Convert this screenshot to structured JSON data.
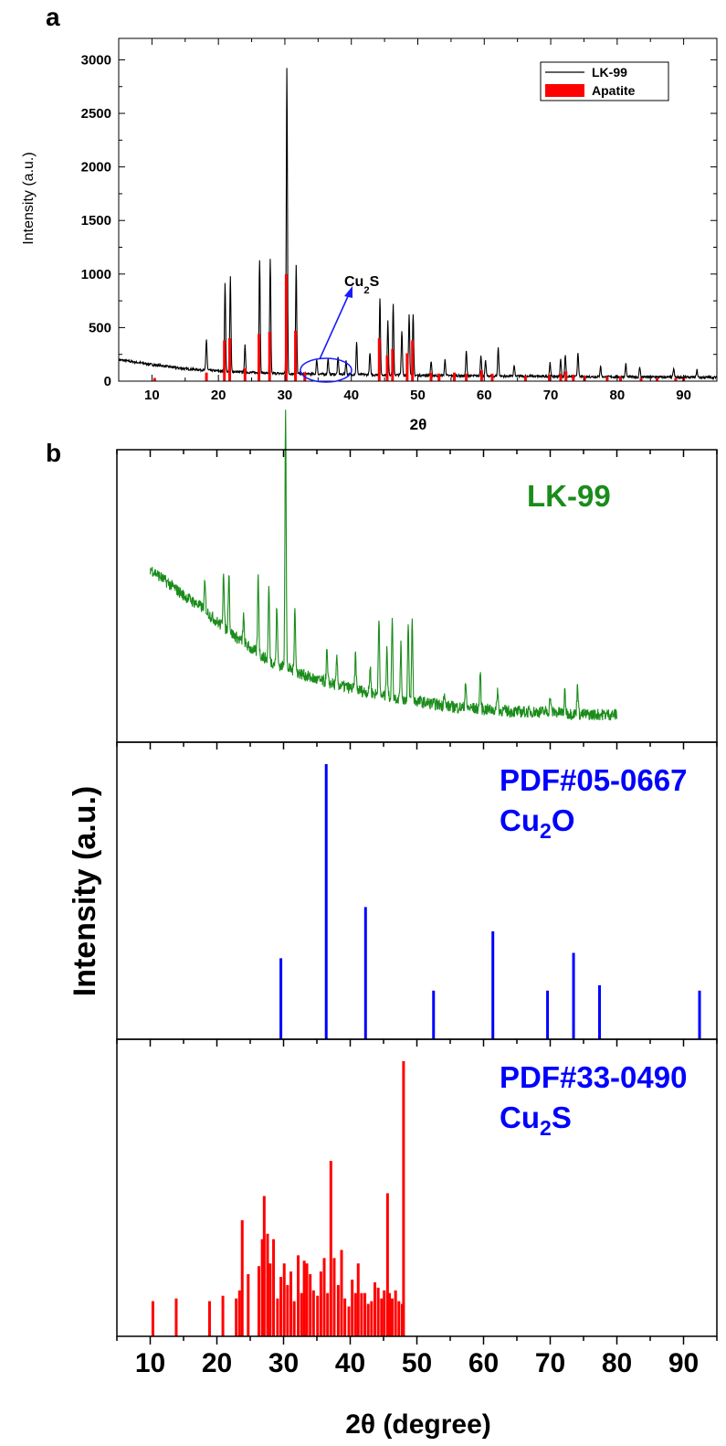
{
  "panels": {
    "a": {
      "label": "a",
      "chart_data": {
        "type": "line",
        "xlabel": "2θ",
        "ylabel": "Intensity (a.u.)",
        "xlim": [
          5,
          95
        ],
        "ylim": [
          0,
          3200
        ],
        "xticks": [
          10,
          20,
          30,
          40,
          50,
          60,
          70,
          80,
          90
        ],
        "yticks": [
          0,
          500,
          1000,
          1500,
          2000,
          2500,
          3000
        ],
        "legend_position": "top-right",
        "annotation": {
          "base": "Cu",
          "sub": "2",
          "tail": "S",
          "x": 36,
          "y": 850
        },
        "baseline": {
          "x": [
            5,
            10,
            15,
            20,
            25,
            30,
            40,
            50,
            60,
            70,
            80,
            95
          ],
          "y": [
            200,
            155,
            115,
            95,
            80,
            70,
            62,
            55,
            48,
            44,
            40,
            35
          ]
        },
        "series": [
          {
            "name": "LK-99",
            "color": "#000000",
            "peaks": [
              [
                18.2,
                290
              ],
              [
                21.0,
                820
              ],
              [
                21.8,
                880
              ],
              [
                24.0,
                250
              ],
              [
                26.2,
                1060
              ],
              [
                27.8,
                1060
              ],
              [
                30.3,
                2860
              ],
              [
                31.7,
                1010
              ],
              [
                34.8,
                140
              ],
              [
                36.5,
                150
              ],
              [
                38.0,
                160
              ],
              [
                39.2,
                130
              ],
              [
                40.8,
                300
              ],
              [
                42.8,
                200
              ],
              [
                44.3,
                720
              ],
              [
                45.5,
                500
              ],
              [
                46.3,
                660
              ],
              [
                47.6,
                420
              ],
              [
                48.7,
                570
              ],
              [
                49.3,
                560
              ],
              [
                52.0,
                130
              ],
              [
                54.1,
                150
              ],
              [
                57.3,
                230
              ],
              [
                59.5,
                200
              ],
              [
                60.2,
                140
              ],
              [
                62.1,
                270
              ],
              [
                64.5,
                100
              ],
              [
                69.9,
                130
              ],
              [
                71.5,
                160
              ],
              [
                72.2,
                200
              ],
              [
                74.1,
                230
              ],
              [
                77.5,
                100
              ],
              [
                81.3,
                120
              ],
              [
                83.4,
                90
              ],
              [
                88.5,
                80
              ],
              [
                92.0,
                70
              ]
            ]
          },
          {
            "name": "Apatite",
            "color": "#ff0000",
            "peaks": [
              [
                10.4,
                30
              ],
              [
                18.2,
                80
              ],
              [
                20.9,
                380
              ],
              [
                21.7,
                400
              ],
              [
                24.0,
                120
              ],
              [
                26.1,
                440
              ],
              [
                27.7,
                460
              ],
              [
                30.2,
                1000
              ],
              [
                31.6,
                470
              ],
              [
                33.0,
                80
              ],
              [
                44.2,
                400
              ],
              [
                45.4,
                240
              ],
              [
                46.2,
                300
              ],
              [
                48.4,
                260
              ],
              [
                49.2,
                380
              ],
              [
                52.0,
                80
              ],
              [
                53.2,
                70
              ],
              [
                55.5,
                80
              ],
              [
                57.3,
                70
              ],
              [
                59.6,
                100
              ],
              [
                61.2,
                70
              ],
              [
                66.2,
                50
              ],
              [
                69.8,
                60
              ],
              [
                71.5,
                70
              ],
              [
                72.3,
                90
              ],
              [
                73.4,
                60
              ],
              [
                75.1,
                50
              ],
              [
                78.5,
                40
              ],
              [
                80.5,
                40
              ],
              [
                83.6,
                30
              ],
              [
                86.0,
                30
              ],
              [
                88.8,
                30
              ],
              [
                90.0,
                30
              ]
            ]
          }
        ]
      }
    },
    "b": {
      "label": "b",
      "xlabel": "2θ (degree)",
      "ylabel": "Intensity (a.u.)",
      "xlim": [
        5,
        95
      ],
      "xticks": [
        10,
        20,
        30,
        40,
        50,
        60,
        70,
        80,
        90
      ],
      "subplots": [
        {
          "title": "LK-99",
          "title_color": "#1a8c1a",
          "chart_data": {
            "type": "line",
            "color": "#1a8c1a",
            "x_range": [
              10,
              80
            ],
            "baseline": {
              "x": [
                10,
                12,
                15,
                18,
                20,
                22,
                25,
                28,
                30,
                35,
                40,
                45,
                50,
                55,
                60,
                65,
                70,
                75,
                80
              ],
              "y": [
                0.62,
                0.58,
                0.52,
                0.47,
                0.42,
                0.38,
                0.32,
                0.27,
                0.25,
                0.2,
                0.17,
                0.14,
                0.12,
                0.1,
                0.09,
                0.08,
                0.08,
                0.07,
                0.07
              ]
            },
            "peaks": [
              [
                18.2,
                0.1
              ],
              [
                21.0,
                0.22
              ],
              [
                21.8,
                0.23
              ],
              [
                24.0,
                0.1
              ],
              [
                26.2,
                0.3
              ],
              [
                27.8,
                0.28
              ],
              [
                29.0,
                0.22
              ],
              [
                30.3,
                0.98
              ],
              [
                31.7,
                0.25
              ],
              [
                36.5,
                0.12
              ],
              [
                38.0,
                0.1
              ],
              [
                40.8,
                0.13
              ],
              [
                43.0,
                0.1
              ],
              [
                44.3,
                0.3
              ],
              [
                45.5,
                0.2
              ],
              [
                46.3,
                0.3
              ],
              [
                47.6,
                0.2
              ],
              [
                48.7,
                0.28
              ],
              [
                49.3,
                0.3
              ],
              [
                54.1,
                0.05
              ],
              [
                57.3,
                0.1
              ],
              [
                59.5,
                0.14
              ],
              [
                62.1,
                0.08
              ],
              [
                70.0,
                0.06
              ],
              [
                72.2,
                0.08
              ],
              [
                74.1,
                0.12
              ]
            ]
          }
        },
        {
          "title": "PDF#05-0667",
          "formula": {
            "base": "Cu",
            "sub": "2",
            "tail": "O"
          },
          "title_color": "#0000ff",
          "chart_data": {
            "type": "bar",
            "color": "#0000ff",
            "x": [
              29.6,
              36.4,
              42.3,
              52.5,
              61.4,
              69.6,
              73.5,
              77.4,
              92.4
            ],
            "values": [
              0.28,
              1.0,
              0.47,
              0.16,
              0.38,
              0.16,
              0.3,
              0.18,
              0.16
            ]
          }
        },
        {
          "title": "PDF#33-0490",
          "formula": {
            "base": "Cu",
            "sub": "2",
            "tail": "S"
          },
          "title_color": "#0000ff",
          "chart_data": {
            "type": "bar",
            "color": "#ff0000",
            "x": [
              10.4,
              13.9,
              18.9,
              20.9,
              22.9,
              23.4,
              23.8,
              24.7,
              26.3,
              26.8,
              27.1,
              27.6,
              28.0,
              28.5,
              29.1,
              29.6,
              30.1,
              30.6,
              31.1,
              31.6,
              32.2,
              32.7,
              33.1,
              33.5,
              34.0,
              34.5,
              35.1,
              35.6,
              36.1,
              36.6,
              37.1,
              37.6,
              38.2,
              38.7,
              39.2,
              39.8,
              40.3,
              40.8,
              41.2,
              41.7,
              42.2,
              42.7,
              43.2,
              43.7,
              44.2,
              44.7,
              45.1,
              45.6,
              45.9,
              46.3,
              46.8,
              47.3,
              47.8,
              48.0
            ],
            "values": [
              0.11,
              0.12,
              0.11,
              0.13,
              0.12,
              0.15,
              0.41,
              0.21,
              0.24,
              0.34,
              0.5,
              0.36,
              0.25,
              0.34,
              0.12,
              0.2,
              0.25,
              0.17,
              0.22,
              0.11,
              0.28,
              0.14,
              0.26,
              0.25,
              0.21,
              0.15,
              0.13,
              0.22,
              0.27,
              0.14,
              0.63,
              0.27,
              0.17,
              0.3,
              0.12,
              0.09,
              0.19,
              0.14,
              0.25,
              0.14,
              0.14,
              0.1,
              0.11,
              0.18,
              0.16,
              0.12,
              0.15,
              0.51,
              0.14,
              0.12,
              0.15,
              0.11,
              0.1,
              1.0
            ]
          }
        }
      ]
    }
  }
}
